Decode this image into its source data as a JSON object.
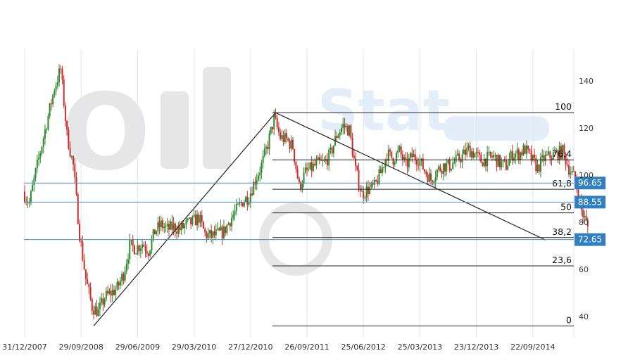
{
  "chart_data": {
    "type": "candlestick",
    "title": "",
    "xlabel": "",
    "ylabel": "",
    "ylim": [
      32,
      150
    ],
    "grid": "vertical",
    "watermark": "OilStat",
    "x_ticks": [
      "31/12/2007",
      "29/09/2008",
      "29/06/2009",
      "29/03/2010",
      "27/12/2010",
      "26/09/2011",
      "25/06/2012",
      "25/03/2013",
      "23/12/2013",
      "22/09/2014"
    ],
    "y_ticks": [
      40,
      60,
      80,
      100,
      120,
      140
    ],
    "price_path": {
      "period_start": "31/12/2007",
      "period_end": "2014-12",
      "approx_monthly_close": [
        93,
        88,
        101,
        113,
        125,
        137,
        145,
        117,
        104,
        75,
        56,
        44,
        42,
        48,
        50,
        52,
        58,
        70,
        69,
        71,
        68,
        76,
        79,
        77,
        78,
        77,
        79,
        80,
        82,
        75,
        74,
        75,
        76,
        81,
        85,
        89,
        91,
        98,
        104,
        113,
        124,
        116,
        115,
        112,
        95,
        101,
        103,
        105,
        105,
        109,
        117,
        121,
        119,
        102,
        92,
        94,
        95,
        101,
        109,
        107,
        110,
        104,
        108,
        107,
        102,
        98,
        102,
        104,
        104,
        106,
        108,
        111,
        109,
        106,
        107,
        108,
        105,
        104,
        109,
        109,
        111,
        107,
        103,
        107,
        108,
        109,
        110,
        103,
        98,
        85,
        78
      ]
    },
    "fibonacci": {
      "levels": [
        {
          "label": "100",
          "value": 126.5
        },
        {
          "label": "76,4",
          "value": 106.5
        },
        {
          "label": "61,8",
          "value": 94.0
        },
        {
          "label": "50",
          "value": 84.0
        },
        {
          "label": "38,2",
          "value": 73.5
        },
        {
          "label": "23,6",
          "value": 61.5
        },
        {
          "label": "0",
          "value": 36.0
        }
      ]
    },
    "trendlines": [
      {
        "from": {
          "date": "2008-12",
          "value": 36.0
        },
        "to": {
          "date": "2011-05",
          "value": 126.5
        }
      },
      {
        "from": {
          "date": "2011-05",
          "value": 126.5
        },
        "to": {
          "date": "2014-12",
          "value": 72.5
        }
      }
    ],
    "horizontal_lines": [
      {
        "value": 96.65,
        "label": "96.65"
      },
      {
        "value": 88.55,
        "label": "88.55"
      },
      {
        "value": 72.65,
        "label": "72.65"
      }
    ],
    "colors": {
      "up": "#2a8a2a",
      "down": "#cc2b2b",
      "level_line": "#4a90c8",
      "badge": "#2f7fc1",
      "grid": "#dde6f0",
      "fib_line": "#222222",
      "watermark_dark": "#e6e6e6",
      "watermark_light": "#e3eef8"
    }
  }
}
